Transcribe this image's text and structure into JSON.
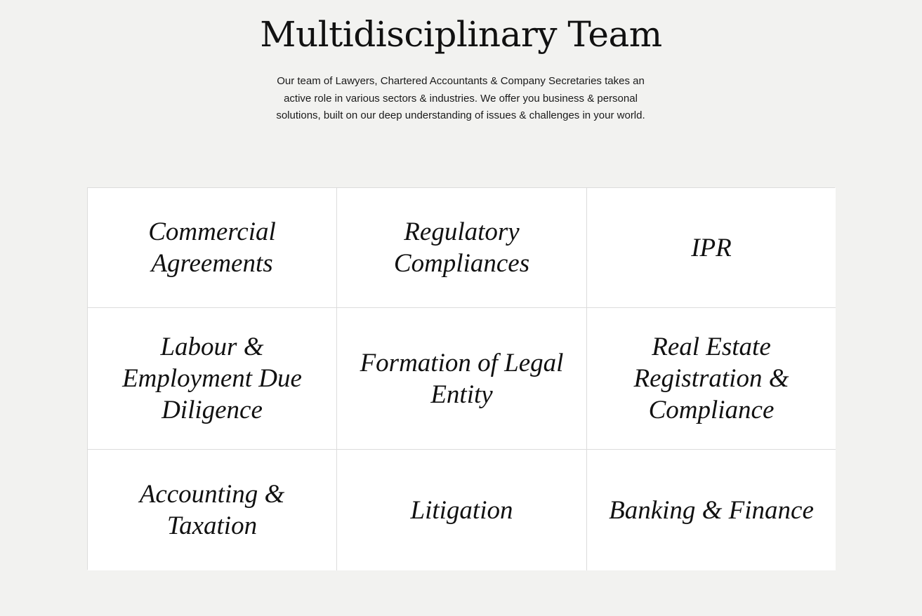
{
  "section": {
    "title": "Multidisciplinary Team",
    "description": "Our team of Lawyers, Chartered Accountants & Company Secretaries takes an active role in various sectors & industries. We offer you business & personal solutions, built on our deep understanding of issues & challenges in your world."
  },
  "services": [
    {
      "label": "Commercial Agreements"
    },
    {
      "label": "Regulatory Compliances"
    },
    {
      "label": "IPR"
    },
    {
      "label": "Labour & Employment Due Diligence"
    },
    {
      "label": "Formation of Legal Entity"
    },
    {
      "label": "Real Estate Registration & Compliance"
    },
    {
      "label": "Accounting & Taxation"
    },
    {
      "label": "Litigation"
    },
    {
      "label": "Banking & Finance"
    }
  ]
}
